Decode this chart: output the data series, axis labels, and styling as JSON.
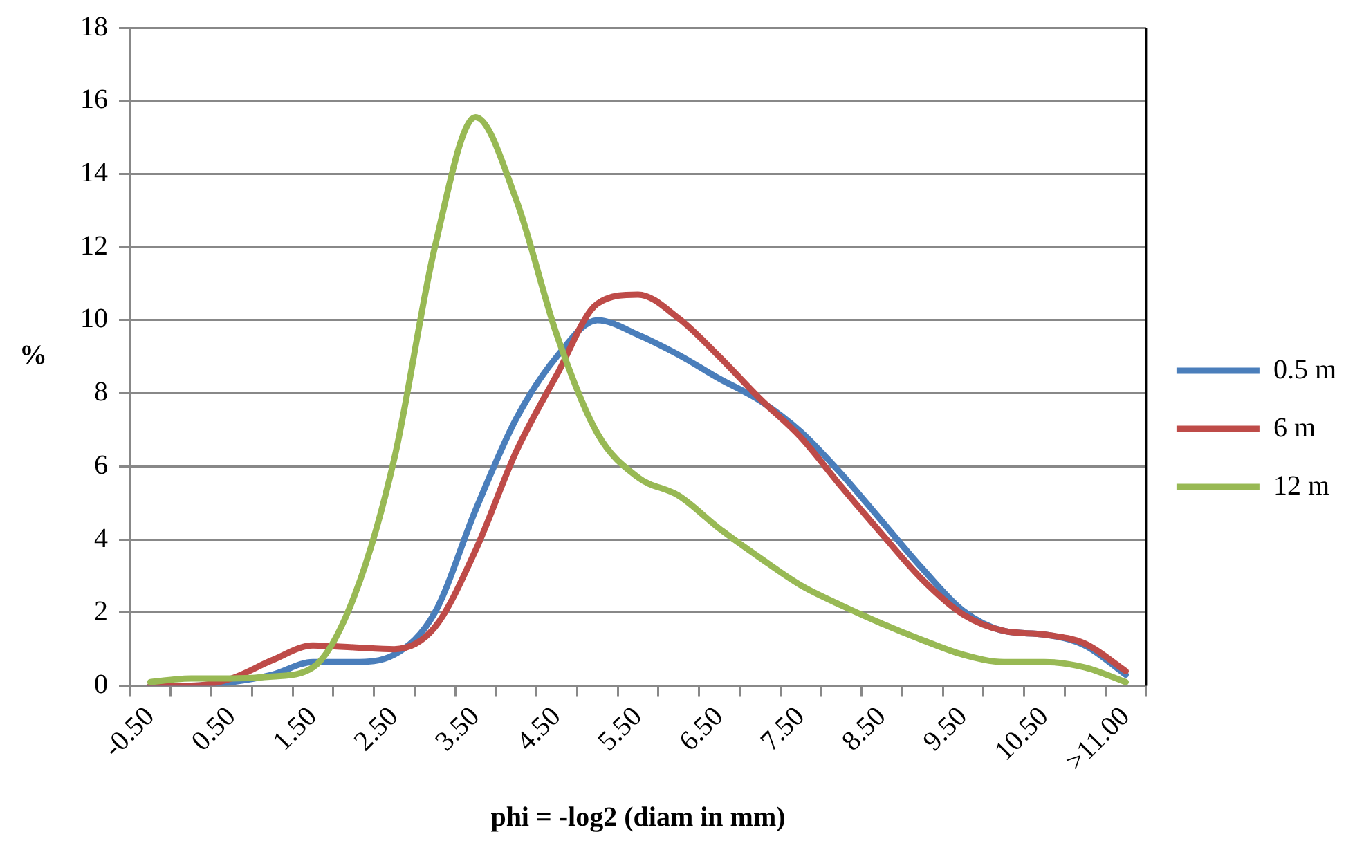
{
  "chart_data": {
    "type": "line",
    "xlabel": "phi = -log2 (diam in mm)",
    "ylabel": "%",
    "categories": [
      "-0.50",
      null,
      "0.50",
      null,
      "1.50",
      null,
      "2.50",
      null,
      "3.50",
      null,
      "4.50",
      null,
      "5.50",
      null,
      "6.50",
      null,
      "7.50",
      null,
      "8.50",
      null,
      "9.50",
      null,
      "10.50",
      null,
      ">11.00"
    ],
    "series": [
      {
        "name": "0.5 m",
        "color": "#4a7ebb",
        "values": [
          0,
          0,
          0.1,
          0.3,
          0.65,
          0.65,
          0.85,
          2.0,
          4.8,
          7.3,
          9.0,
          10.0,
          9.6,
          9.05,
          8.4,
          7.8,
          6.95,
          5.8,
          4.5,
          3.2,
          2.05,
          1.5,
          1.4,
          1.1,
          0.3
        ]
      },
      {
        "name": "6 m",
        "color": "#be4b48",
        "values": [
          0,
          0,
          0.2,
          0.7,
          1.1,
          1.05,
          1.0,
          1.6,
          3.7,
          6.4,
          8.5,
          10.45,
          10.7,
          10.05,
          9.0,
          7.85,
          6.8,
          5.45,
          4.15,
          2.9,
          1.95,
          1.5,
          1.4,
          1.15,
          0.4
        ]
      },
      {
        "name": "12 m",
        "color": "#98b954",
        "values": [
          0.1,
          0.2,
          0.2,
          0.25,
          0.5,
          2.4,
          6.2,
          12.0,
          15.55,
          13.3,
          9.6,
          6.9,
          5.7,
          5.2,
          4.3,
          3.5,
          2.75,
          2.2,
          1.7,
          1.25,
          0.85,
          0.65,
          0.65,
          0.5,
          0.1
        ]
      }
    ],
    "ylim": [
      0,
      18
    ],
    "yticks": [
      0,
      2,
      4,
      6,
      8,
      10,
      12,
      14,
      16,
      18
    ],
    "grid": "y",
    "legend": "right",
    "marker": "none",
    "line_style": "solid"
  }
}
